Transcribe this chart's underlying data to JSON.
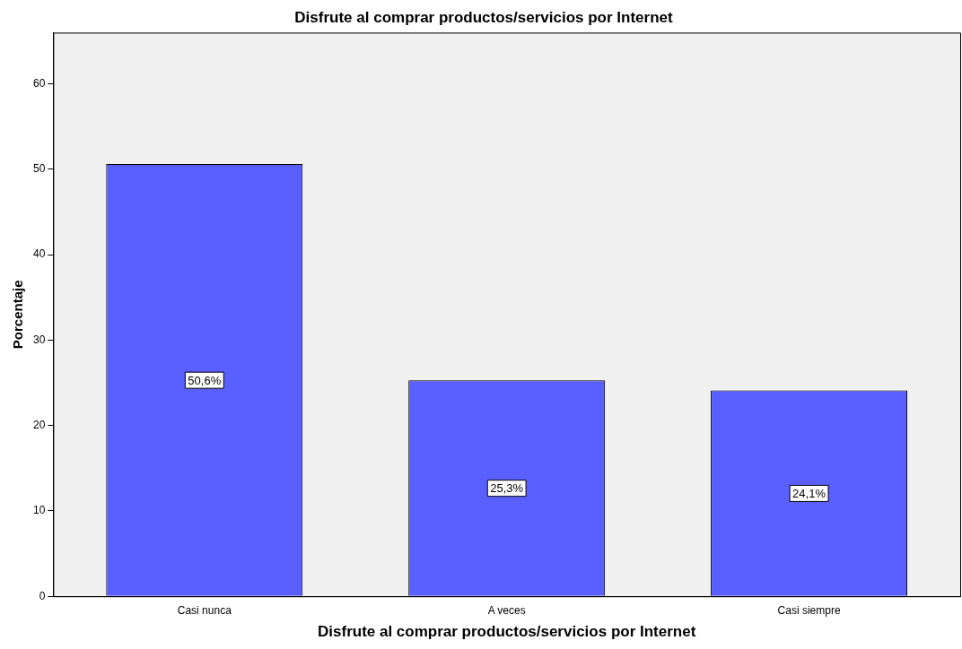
{
  "chart_data": {
    "type": "bar",
    "title": "Disfrute al comprar productos/servicios por Internet",
    "xlabel": "Disfrute al comprar productos/servicios por Internet",
    "ylabel": "Porcentaje",
    "categories": [
      "Casi nunca",
      "A veces",
      "Casi siempre"
    ],
    "values": [
      50.6,
      25.3,
      24.1
    ],
    "value_labels": [
      "50,6%",
      "25,3%",
      "24,1%"
    ],
    "color": "#5a5fff",
    "ylim": [
      0,
      66
    ],
    "yticks": [
      0,
      10,
      20,
      30,
      40,
      50,
      60
    ],
    "grid": false,
    "legend": false
  }
}
